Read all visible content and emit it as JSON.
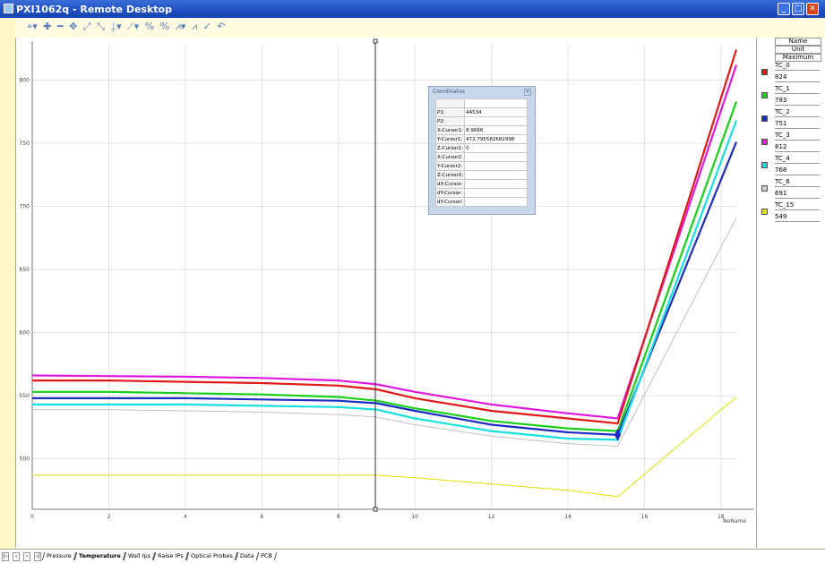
{
  "window": {
    "title": "PXI1062q - Remote Desktop"
  },
  "toolbar_icons": [
    "cursor-tool",
    "zoom-in",
    "zoom-out",
    "pan",
    "zoom-x",
    "zoom-y",
    "marker",
    "trend",
    "percent-a",
    "percent-b",
    "peak",
    "peak-edit",
    "check",
    "reset"
  ],
  "coordinates": {
    "title": "Coordinates",
    "rows": [
      {
        "label": "P1:",
        "value": "44534"
      },
      {
        "label": "P2:",
        "value": ""
      },
      {
        "label": "X-Cursor1:",
        "value": "8.9666"
      },
      {
        "label": "Y-Cursor1:",
        "value": "472.795582682998"
      },
      {
        "label": "Z-Cursor1:",
        "value": "0"
      },
      {
        "label": "X-Cursor2:",
        "value": ""
      },
      {
        "label": "Y-Cursor2:",
        "value": ""
      },
      {
        "label": "Z-Cursor2:",
        "value": ""
      },
      {
        "label": "dX-Cursor:",
        "value": ""
      },
      {
        "label": "dY-Cursor:",
        "value": ""
      },
      {
        "label": "dY-Cursor/",
        "value": ""
      }
    ]
  },
  "legend": {
    "headers": [
      "Name",
      "Unit",
      "Maximum"
    ],
    "items": [
      {
        "name": "TC_0",
        "max": "824",
        "color": "#e01818"
      },
      {
        "name": "TC_1",
        "max": "783",
        "color": "#18d018"
      },
      {
        "name": "TC_2",
        "max": "751",
        "color": "#1c2cc0"
      },
      {
        "name": "TC_3",
        "max": "812",
        "color": "#e018e0"
      },
      {
        "name": "TC_4",
        "max": "768",
        "color": "#18e0e0"
      },
      {
        "name": "TC_6",
        "max": "691",
        "color": "#c8c8c8"
      },
      {
        "name": "TC_15",
        "max": "549",
        "color": "#e0e000"
      }
    ]
  },
  "tabs": [
    "Pressure",
    "Temperature",
    "Wall Ips",
    "Raise IPs",
    "Optical Probes",
    "Data",
    "PCB"
  ],
  "active_tab": "Temperature",
  "chart_data": {
    "type": "line",
    "xlabel": "NoName",
    "xlim": [
      0,
      18.4
    ],
    "ylim": [
      460,
      828
    ],
    "x_ticks": [
      0,
      2,
      4,
      6,
      8,
      10,
      12,
      14,
      16,
      18
    ],
    "y_ticks": [
      500,
      550,
      600,
      650,
      700,
      750,
      800
    ],
    "grid": true,
    "cursor_x": 8.9666,
    "series": [
      {
        "name": "TC_3",
        "color": "#e018e0",
        "x": [
          0,
          2,
          4,
          6,
          8,
          9,
          10,
          12,
          14,
          15.3,
          18.4
        ],
        "y": [
          566,
          565.5,
          565,
          564,
          562,
          559,
          553,
          543,
          536,
          532,
          812
        ]
      },
      {
        "name": "TC_0",
        "color": "#e01818",
        "x": [
          0,
          2,
          4,
          6,
          8,
          9,
          10,
          12,
          14,
          15.3,
          18.4
        ],
        "y": [
          562,
          562,
          561,
          560,
          558,
          555,
          548,
          538,
          532,
          528,
          824
        ]
      },
      {
        "name": "TC_1",
        "color": "#18d018",
        "x": [
          0,
          2,
          4,
          6,
          8,
          9,
          10,
          12,
          14,
          15.3,
          18.4
        ],
        "y": [
          553,
          553,
          552,
          551,
          549,
          546,
          540,
          530,
          524,
          522,
          783
        ]
      },
      {
        "name": "TC_2",
        "color": "#1c2cc0",
        "x": [
          0,
          2,
          4,
          6,
          8,
          9,
          10,
          12,
          14,
          15.3,
          18.4
        ],
        "y": [
          548,
          548,
          548,
          547,
          546,
          544,
          538,
          527,
          521,
          519,
          751
        ]
      },
      {
        "name": "TC_4",
        "color": "#18e0e0",
        "x": [
          0,
          2,
          4,
          6,
          8,
          9,
          10,
          12,
          14,
          15.3,
          18.4
        ],
        "y": [
          543,
          543,
          543,
          542,
          541,
          539,
          532,
          522,
          516,
          515,
          768
        ]
      },
      {
        "name": "TC_6",
        "color": "#c0c0c0",
        "x": [
          0,
          2,
          4,
          6,
          8,
          9,
          10,
          12,
          14,
          15.3,
          18.4
        ],
        "y": [
          539,
          539,
          538,
          537,
          535,
          533,
          527,
          518,
          512,
          510,
          691
        ]
      },
      {
        "name": "TC_15",
        "color": "#e0e000",
        "x": [
          0,
          2,
          4,
          6,
          8,
          9,
          10,
          12,
          14,
          15.3,
          18.4
        ],
        "y": [
          487,
          487,
          487,
          487,
          487,
          487,
          485,
          480,
          475,
          470,
          549
        ]
      }
    ]
  }
}
